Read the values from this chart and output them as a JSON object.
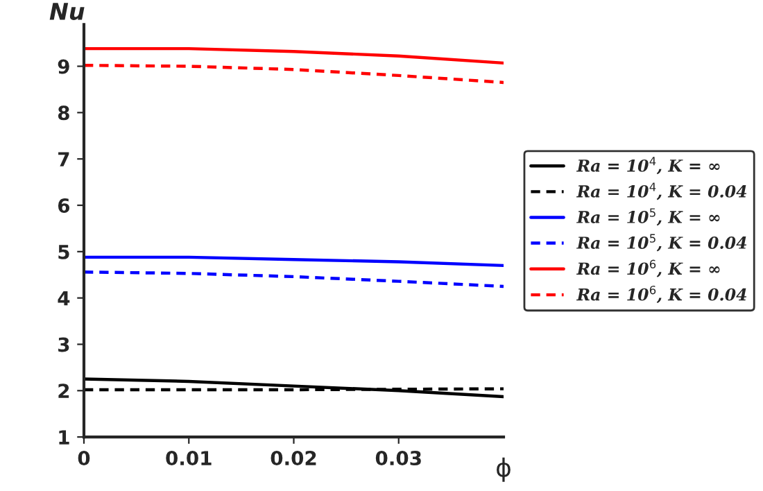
{
  "chart_data": {
    "type": "line",
    "xlabel": "ϕ",
    "ylabel": "Nu",
    "x": [
      0,
      0.01,
      0.02,
      0.03,
      0.04
    ],
    "xlim": [
      0,
      0.04
    ],
    "xticks": [
      0,
      0.01,
      0.02,
      0.03
    ],
    "ylim": [
      1,
      9.9
    ],
    "yticks": [
      1,
      2,
      3,
      4,
      5,
      6,
      7,
      8,
      9
    ],
    "grid": false,
    "legend": "right",
    "series": [
      {
        "name": "Ra = 10$^{4}$, K = ∞",
        "color": "#000000",
        "line_style": "solid",
        "values": [
          2.25,
          2.2,
          2.1,
          2.0,
          1.87
        ]
      },
      {
        "name": "Ra = 10$^{4}$, K = 0.04",
        "color": "#000000",
        "line_style": "dashed",
        "values": [
          2.02,
          2.02,
          2.02,
          2.03,
          2.04
        ]
      },
      {
        "name": "Ra = 10$^{5}$, K = ∞",
        "color": "#0000ff",
        "line_style": "solid",
        "values": [
          4.88,
          4.88,
          4.83,
          4.78,
          4.7
        ]
      },
      {
        "name": "Ra = 10$^{5}$, K = 0.04",
        "color": "#0000ff",
        "line_style": "dashed",
        "values": [
          4.56,
          4.53,
          4.46,
          4.36,
          4.25
        ]
      },
      {
        "name": "Ra = 10$^{6}$, K = ∞",
        "color": "#ff0000",
        "line_style": "solid",
        "values": [
          9.38,
          9.38,
          9.32,
          9.22,
          9.07
        ]
      },
      {
        "name": "Ra = 10$^{6}$, K = 0.04",
        "color": "#ff0000",
        "line_style": "dashed",
        "values": [
          9.02,
          9.0,
          8.93,
          8.8,
          8.65
        ]
      }
    ]
  }
}
